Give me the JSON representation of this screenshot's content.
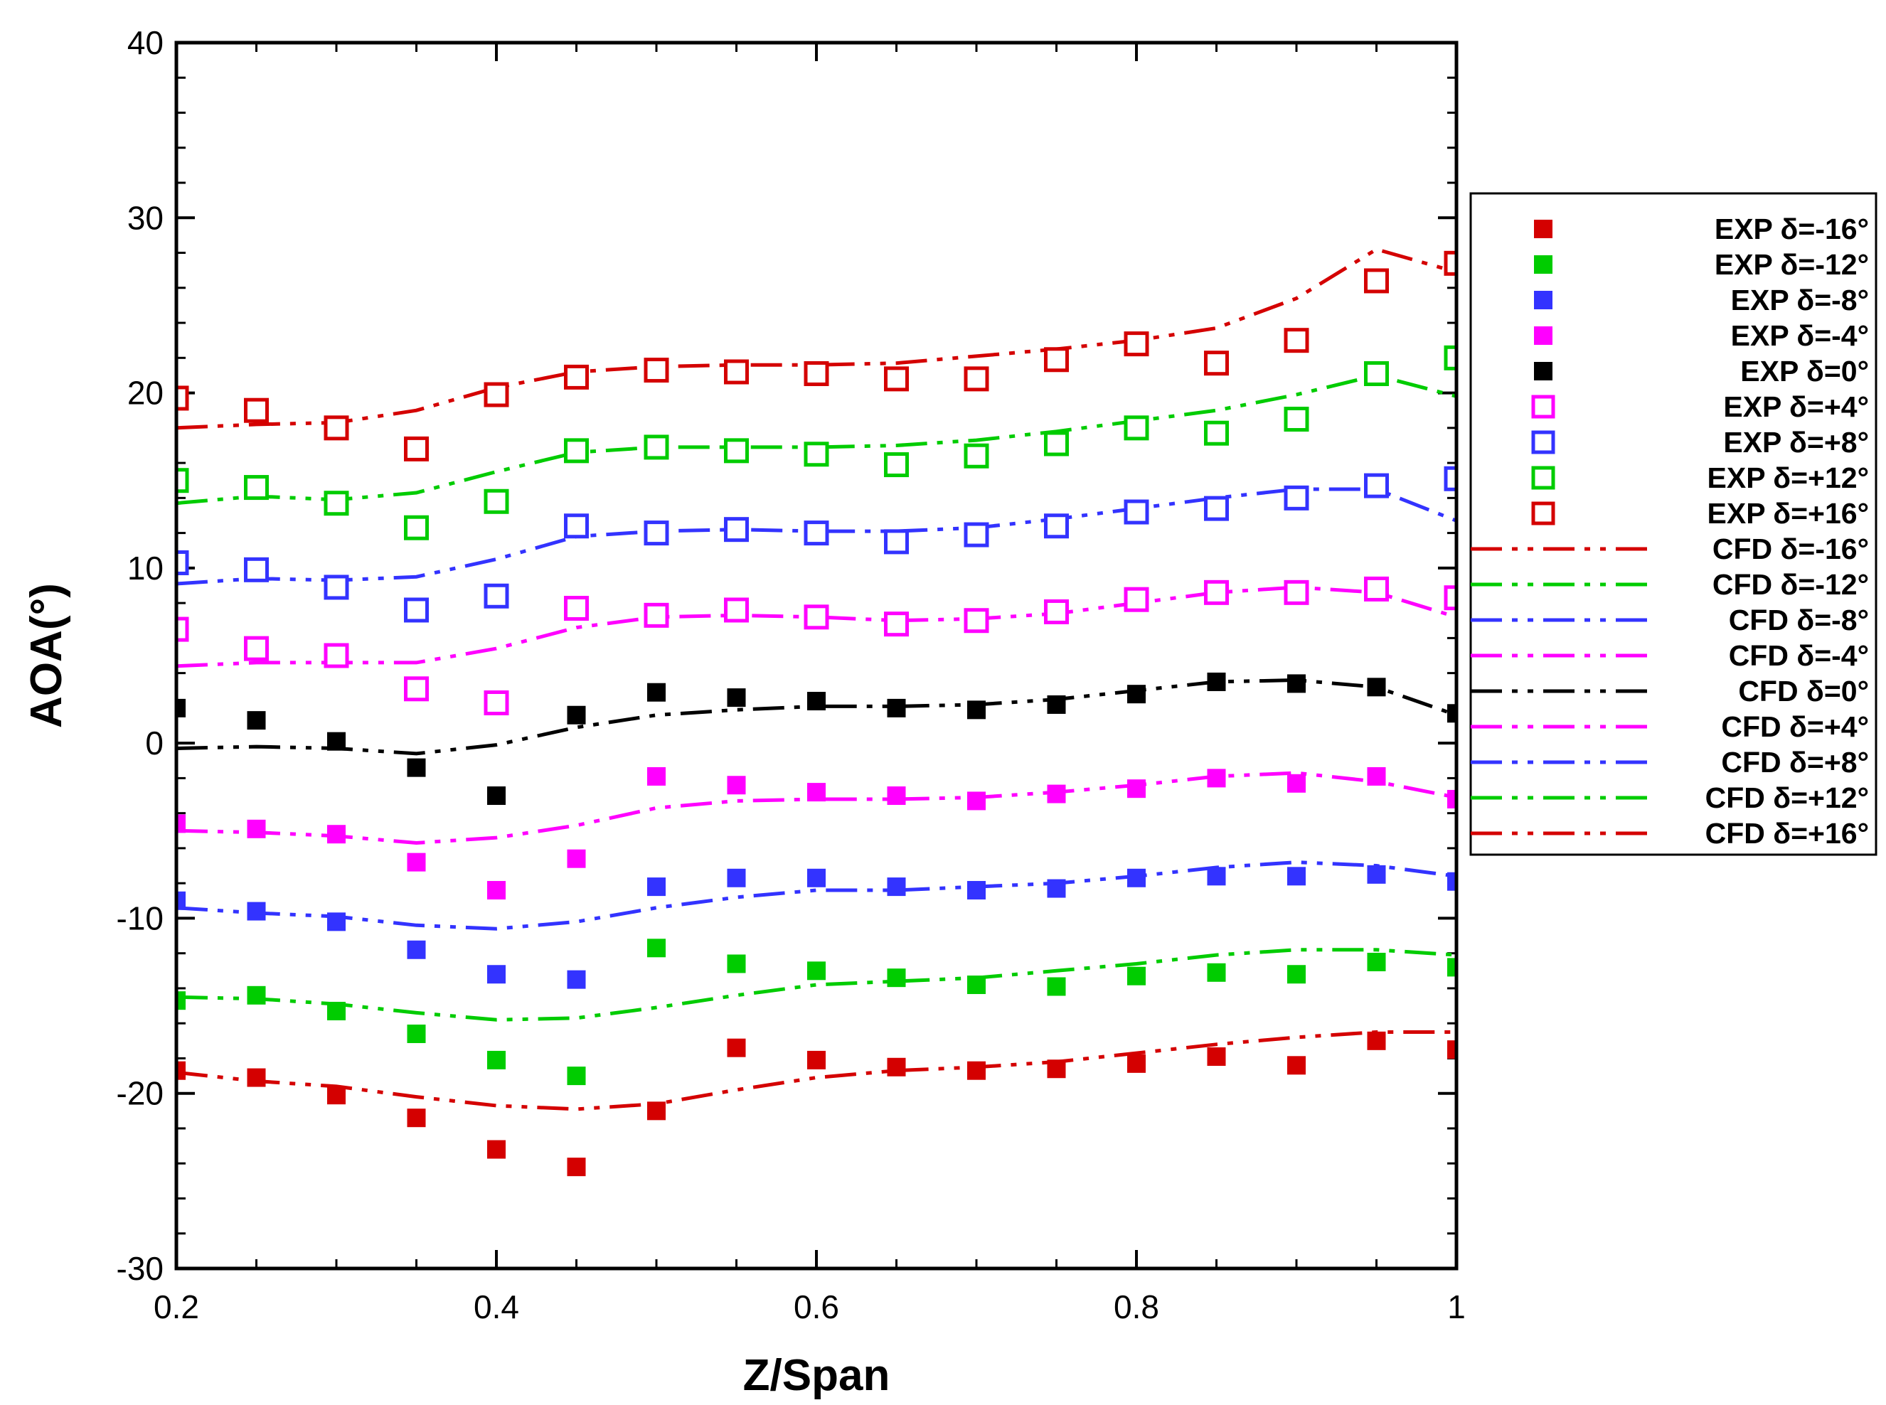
{
  "chart_data": {
    "type": "scatter",
    "title": "",
    "xlabel": "Z/Span",
    "ylabel": "AOA(°)",
    "xlim": [
      0.2,
      1.0
    ],
    "ylim": [
      -30,
      40
    ],
    "xticks": [
      0.2,
      0.4,
      0.6,
      0.8,
      1.0
    ],
    "xtick_labels": [
      "0.2",
      "0.4",
      "0.6",
      "0.8",
      "1"
    ],
    "yticks": [
      -30,
      -20,
      -10,
      0,
      10,
      20,
      30,
      40
    ],
    "ytick_labels": [
      "-30",
      "-20",
      "-10",
      "0",
      "10",
      "20",
      "30",
      "40"
    ],
    "legend_position": "right",
    "x": [
      0.2,
      0.25,
      0.3,
      0.35,
      0.4,
      0.45,
      0.5,
      0.55,
      0.6,
      0.65,
      0.7,
      0.75,
      0.8,
      0.85,
      0.9,
      0.95,
      1.0
    ],
    "exp_series": [
      {
        "name": "EXP δ=-16°",
        "color": "#d40000",
        "marker": "filled-square",
        "values": [
          -18.7,
          -19.1,
          -20.1,
          -21.4,
          -23.2,
          -24.2,
          -21.0,
          -17.4,
          -18.1,
          -18.5,
          -18.7,
          -18.6,
          -18.3,
          -17.9,
          -18.4,
          -17.0,
          -17.5
        ]
      },
      {
        "name": "EXP δ=-12°",
        "color": "#00cc00",
        "marker": "filled-square",
        "values": [
          -14.7,
          -14.4,
          -15.3,
          -16.6,
          -18.1,
          -19.0,
          -11.7,
          -12.6,
          -13.0,
          -13.4,
          -13.8,
          -13.9,
          -13.3,
          -13.1,
          -13.2,
          -12.5,
          -12.8
        ]
      },
      {
        "name": "EXP δ=-8°",
        "color": "#3333ff",
        "marker": "filled-square",
        "values": [
          -9.0,
          -9.6,
          -10.2,
          -11.8,
          -13.2,
          -13.5,
          -8.2,
          -7.7,
          -7.7,
          -8.2,
          -8.4,
          -8.3,
          -7.7,
          -7.6,
          -7.6,
          -7.5,
          -7.9
        ]
      },
      {
        "name": "EXP δ=-4°",
        "color": "#ff00ff",
        "marker": "filled-square",
        "values": [
          -4.6,
          -4.9,
          -5.2,
          -6.8,
          -8.4,
          -6.6,
          -1.9,
          -2.4,
          -2.8,
          -3.0,
          -3.3,
          -2.9,
          -2.6,
          -2.0,
          -2.3,
          -1.9,
          -3.2
        ]
      },
      {
        "name": "EXP δ=0°",
        "color": "#000000",
        "marker": "filled-square",
        "values": [
          2.0,
          1.3,
          0.1,
          -1.4,
          -3.0,
          1.6,
          2.9,
          2.6,
          2.4,
          2.0,
          1.9,
          2.2,
          2.8,
          3.5,
          3.4,
          3.2,
          1.7
        ]
      },
      {
        "name": "EXP δ=+4°",
        "color": "#ff00ff",
        "marker": "open-square",
        "values": [
          6.5,
          5.4,
          5.0,
          3.1,
          2.3,
          7.7,
          7.3,
          7.6,
          7.2,
          6.8,
          7.0,
          7.5,
          8.2,
          8.6,
          8.6,
          8.8,
          8.3
        ]
      },
      {
        "name": "EXP δ=+8°",
        "color": "#3333ff",
        "marker": "open-square",
        "values": [
          10.3,
          9.9,
          8.9,
          7.6,
          8.4,
          12.4,
          12.0,
          12.2,
          12.0,
          11.5,
          11.9,
          12.4,
          13.2,
          13.4,
          14.0,
          14.7,
          15.1
        ]
      },
      {
        "name": "EXP δ=+12°",
        "color": "#00cc00",
        "marker": "open-square",
        "values": [
          15.0,
          14.6,
          13.7,
          12.3,
          13.8,
          16.7,
          16.9,
          16.7,
          16.5,
          15.9,
          16.4,
          17.1,
          18.0,
          17.7,
          18.5,
          21.1,
          22.0
        ]
      },
      {
        "name": "EXP δ=+16°",
        "color": "#d40000",
        "marker": "open-square",
        "values": [
          19.7,
          19.0,
          18.0,
          16.8,
          19.9,
          20.9,
          21.3,
          21.2,
          21.1,
          20.8,
          20.8,
          21.9,
          22.8,
          21.7,
          23.0,
          26.4,
          27.4
        ]
      }
    ],
    "cfd_series": [
      {
        "name": "CFD δ=-16°",
        "color": "#d40000",
        "style": "dash-dot-dot",
        "values": [
          -18.8,
          -19.3,
          -19.6,
          -20.2,
          -20.7,
          -20.9,
          -20.6,
          -19.8,
          -19.1,
          -18.7,
          -18.5,
          -18.2,
          -17.7,
          -17.2,
          -16.8,
          -16.5,
          -16.5
        ]
      },
      {
        "name": "CFD δ=-12°",
        "color": "#00cc00",
        "style": "dash-dot-dot",
        "values": [
          -14.5,
          -14.6,
          -14.9,
          -15.4,
          -15.8,
          -15.7,
          -15.1,
          -14.4,
          -13.8,
          -13.6,
          -13.4,
          -13.0,
          -12.6,
          -12.1,
          -11.8,
          -11.8,
          -12.1
        ]
      },
      {
        "name": "CFD δ=-8°",
        "color": "#3333ff",
        "style": "dash-dot-dot",
        "values": [
          -9.4,
          -9.7,
          -9.9,
          -10.4,
          -10.6,
          -10.2,
          -9.4,
          -8.8,
          -8.4,
          -8.4,
          -8.2,
          -8.0,
          -7.6,
          -7.1,
          -6.8,
          -7.0,
          -7.6
        ]
      },
      {
        "name": "CFD δ=-4°",
        "color": "#ff00ff",
        "style": "dash-dot-dot",
        "values": [
          -5.0,
          -5.1,
          -5.3,
          -5.7,
          -5.4,
          -4.7,
          -3.7,
          -3.3,
          -3.2,
          -3.2,
          -3.1,
          -2.8,
          -2.4,
          -1.9,
          -1.7,
          -2.2,
          -3.1
        ]
      },
      {
        "name": "CFD δ=0°",
        "color": "#000000",
        "style": "dash-dot-dot",
        "values": [
          -0.3,
          -0.2,
          -0.3,
          -0.6,
          -0.1,
          0.9,
          1.6,
          1.9,
          2.1,
          2.1,
          2.2,
          2.5,
          3.0,
          3.5,
          3.6,
          3.2,
          1.6
        ]
      },
      {
        "name": "CFD δ=+4°",
        "color": "#ff00ff",
        "style": "dash-dot-dot",
        "values": [
          4.4,
          4.6,
          4.6,
          4.6,
          5.4,
          6.6,
          7.2,
          7.3,
          7.2,
          7.0,
          7.1,
          7.4,
          8.0,
          8.6,
          8.9,
          8.6,
          7.2
        ]
      },
      {
        "name": "CFD δ=+8°",
        "color": "#3333ff",
        "style": "dash-dot-dot",
        "values": [
          9.1,
          9.4,
          9.3,
          9.5,
          10.5,
          11.8,
          12.1,
          12.2,
          12.1,
          12.1,
          12.3,
          12.8,
          13.4,
          14.0,
          14.5,
          14.5,
          12.7
        ]
      },
      {
        "name": "CFD δ=+12°",
        "color": "#00cc00",
        "style": "dash-dot-dot",
        "values": [
          13.7,
          14.1,
          13.9,
          14.3,
          15.5,
          16.6,
          16.9,
          16.9,
          16.9,
          17.0,
          17.3,
          17.8,
          18.4,
          19.0,
          19.9,
          21.0,
          19.8
        ]
      },
      {
        "name": "CFD δ=+16°",
        "color": "#d40000",
        "style": "dash-dot-dot",
        "values": [
          18.0,
          18.2,
          18.3,
          19.0,
          20.3,
          21.2,
          21.5,
          21.6,
          21.6,
          21.7,
          22.1,
          22.5,
          23.0,
          23.7,
          25.4,
          28.2,
          26.9
        ]
      }
    ]
  }
}
